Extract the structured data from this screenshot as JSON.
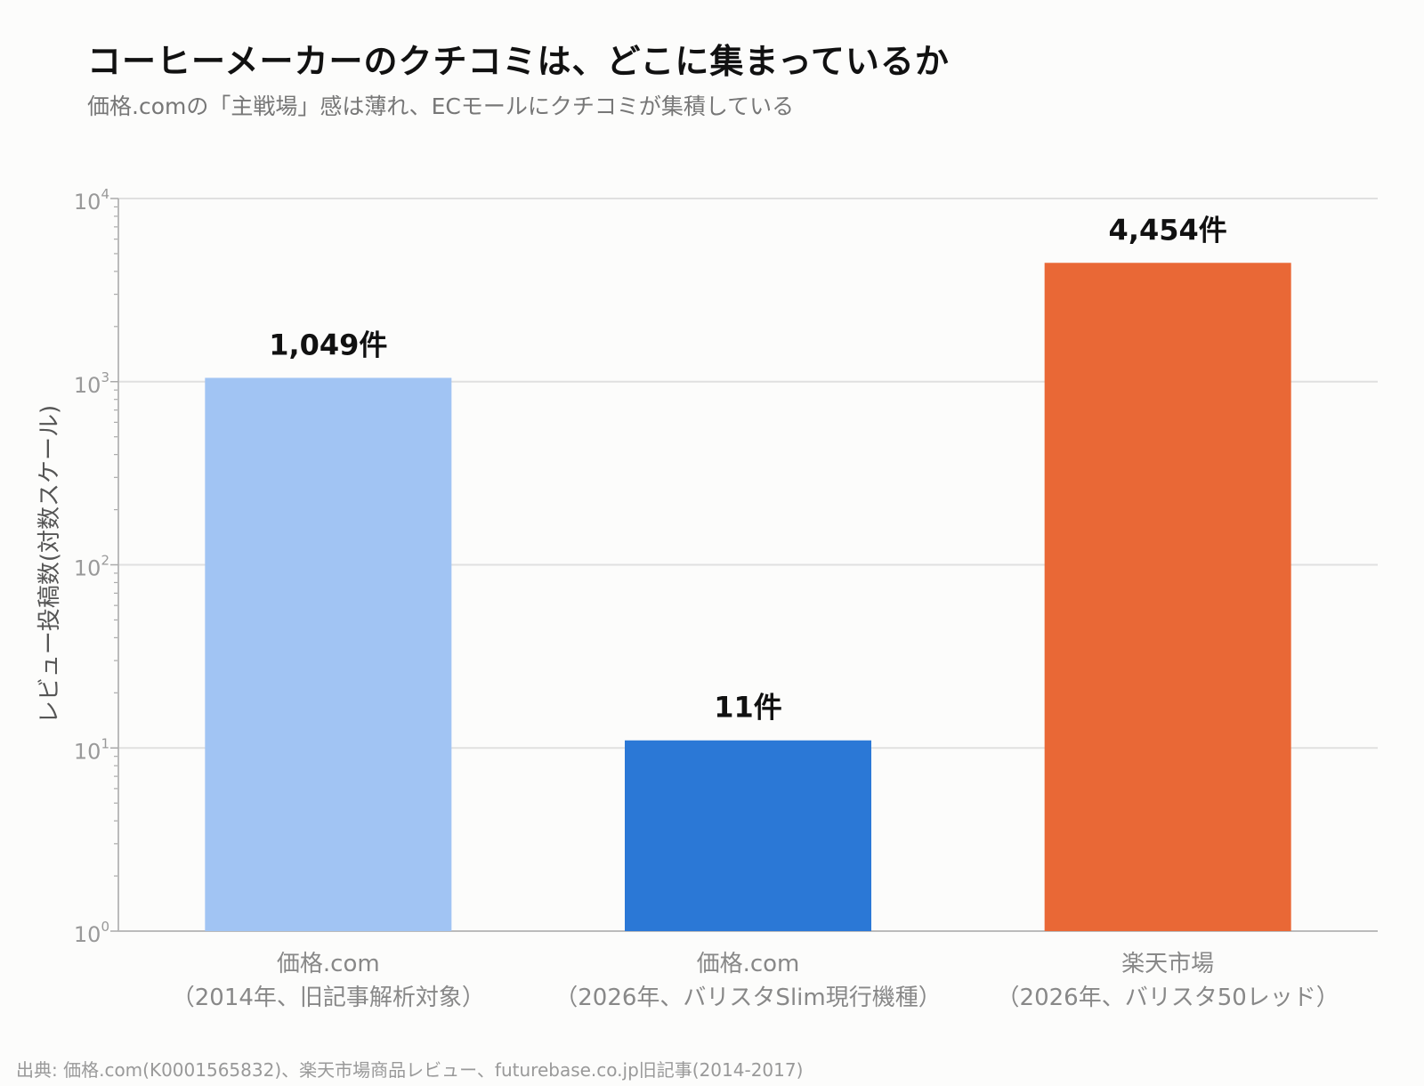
{
  "title": "コーヒーメーカーのクチコミは、どこに集まっているか",
  "subtitle": "価格.comの「主戦場」感は薄れ、ECモールにクチコミが集積している",
  "source": "出典: 価格.com(K0001565832)、楽天市場商品レビュー、futurebase.co.jp旧記事(2014-2017)",
  "chart_data": {
    "type": "bar",
    "ylabel": "レビュー投稿数(対数スケール)",
    "yscale": "log",
    "ylim": [
      1,
      10000
    ],
    "ytick_labels": [
      {
        "base": "10",
        "exp": "0"
      },
      {
        "base": "10",
        "exp": "1"
      },
      {
        "base": "10",
        "exp": "2"
      },
      {
        "base": "10",
        "exp": "3"
      },
      {
        "base": "10",
        "exp": "4"
      }
    ],
    "grid": true,
    "categories": [
      {
        "line1": "価格.com",
        "line2": "（2014年、旧記事解析対象）"
      },
      {
        "line1": "価格.com",
        "line2": "（2026年、バリスタSlim現行機種）"
      },
      {
        "line1": "楽天市場",
        "line2": "（2026年、バリスタ50レッド）"
      }
    ],
    "values": [
      1049,
      11,
      4454
    ],
    "data_labels": [
      "1,049件",
      "11件",
      "4,454件"
    ],
    "colors": [
      "#a1c4f3",
      "#2b78d6",
      "#e96836"
    ]
  }
}
